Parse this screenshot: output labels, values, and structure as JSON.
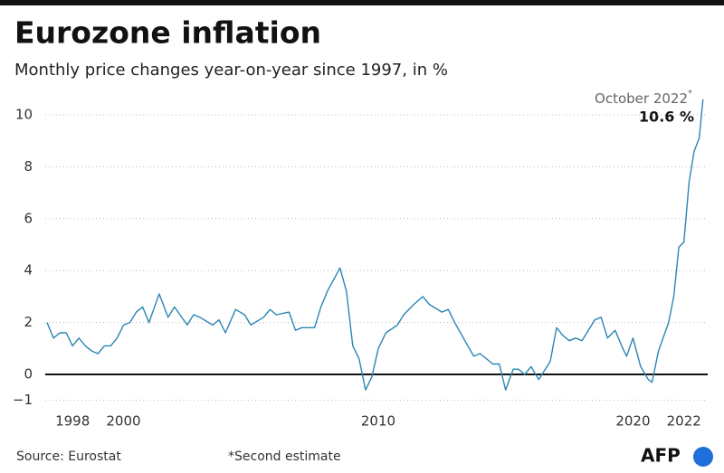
{
  "chart_data": {
    "type": "line",
    "title": "Eurozone inflation",
    "subtitle": "Monthly price changes year-on-year since 1997, in %",
    "source": "Source: Eurostat",
    "note": "*Second estimate",
    "logo": "AFP",
    "annotation": {
      "text": "October 2022",
      "note_mark": "*",
      "value_label": "10.6 %"
    },
    "x": [
      1997.0,
      1997.25,
      1997.5,
      1997.75,
      1998.0,
      1998.25,
      1998.5,
      1998.75,
      1999.0,
      1999.25,
      1999.5,
      1999.75,
      2000.0,
      2000.25,
      2000.5,
      2000.75,
      2001.0,
      2001.4,
      2001.75,
      2002.0,
      2002.5,
      2002.75,
      2003.0,
      2003.5,
      2003.75,
      2004.0,
      2004.4,
      2004.75,
      2005.0,
      2005.5,
      2005.75,
      2006.0,
      2006.5,
      2006.75,
      2007.0,
      2007.5,
      2007.75,
      2008.0,
      2008.5,
      2008.75,
      2009.0,
      2009.25,
      2009.5,
      2009.75,
      2010.0,
      2010.3,
      2010.75,
      2011.0,
      2011.4,
      2011.75,
      2012.0,
      2012.5,
      2012.75,
      2013.0,
      2013.4,
      2013.75,
      2014.0,
      2014.5,
      2014.75,
      2015.0,
      2015.3,
      2015.5,
      2015.75,
      2016.0,
      2016.3,
      2016.75,
      2017.0,
      2017.25,
      2017.5,
      2017.75,
      2018.0,
      2018.5,
      2018.75,
      2019.0,
      2019.3,
      2019.6,
      2019.75,
      2020.0,
      2020.3,
      2020.6,
      2020.75,
      2021.0,
      2021.4,
      2021.6,
      2021.8,
      2022.0,
      2022.2,
      2022.4,
      2022.6,
      2022.75
    ],
    "series": [
      {
        "name": "Inflation",
        "color": "#2a86b4",
        "values": [
          2.0,
          1.4,
          1.6,
          1.6,
          1.1,
          1.4,
          1.1,
          0.9,
          0.8,
          1.1,
          1.1,
          1.4,
          1.9,
          2.0,
          2.4,
          2.6,
          2.0,
          3.1,
          2.2,
          2.6,
          1.9,
          2.3,
          2.2,
          1.9,
          2.1,
          1.6,
          2.5,
          2.3,
          1.9,
          2.2,
          2.5,
          2.3,
          2.4,
          1.7,
          1.8,
          1.8,
          2.6,
          3.2,
          4.1,
          3.2,
          1.1,
          0.6,
          -0.6,
          -0.1,
          1.0,
          1.6,
          1.9,
          2.3,
          2.7,
          3.0,
          2.7,
          2.4,
          2.5,
          2.0,
          1.3,
          0.7,
          0.8,
          0.4,
          0.4,
          -0.6,
          0.2,
          0.2,
          0.0,
          0.3,
          -0.2,
          0.5,
          1.8,
          1.5,
          1.3,
          1.4,
          1.3,
          2.1,
          2.2,
          1.4,
          1.7,
          1.0,
          0.7,
          1.4,
          0.3,
          -0.2,
          -0.3,
          0.9,
          2.0,
          3.0,
          4.9,
          5.1,
          7.4,
          8.6,
          9.1,
          10.6
        ]
      }
    ],
    "xlim": [
      1996.7,
      2023.2
    ],
    "xticks": [
      1998,
      2000,
      2010,
      2020,
      2022
    ],
    "ylim": [
      -1.2,
      11
    ],
    "yticks": [
      {
        "value": -1,
        "label": "−1"
      },
      0,
      2,
      4,
      6,
      8,
      10
    ],
    "grid": true
  }
}
